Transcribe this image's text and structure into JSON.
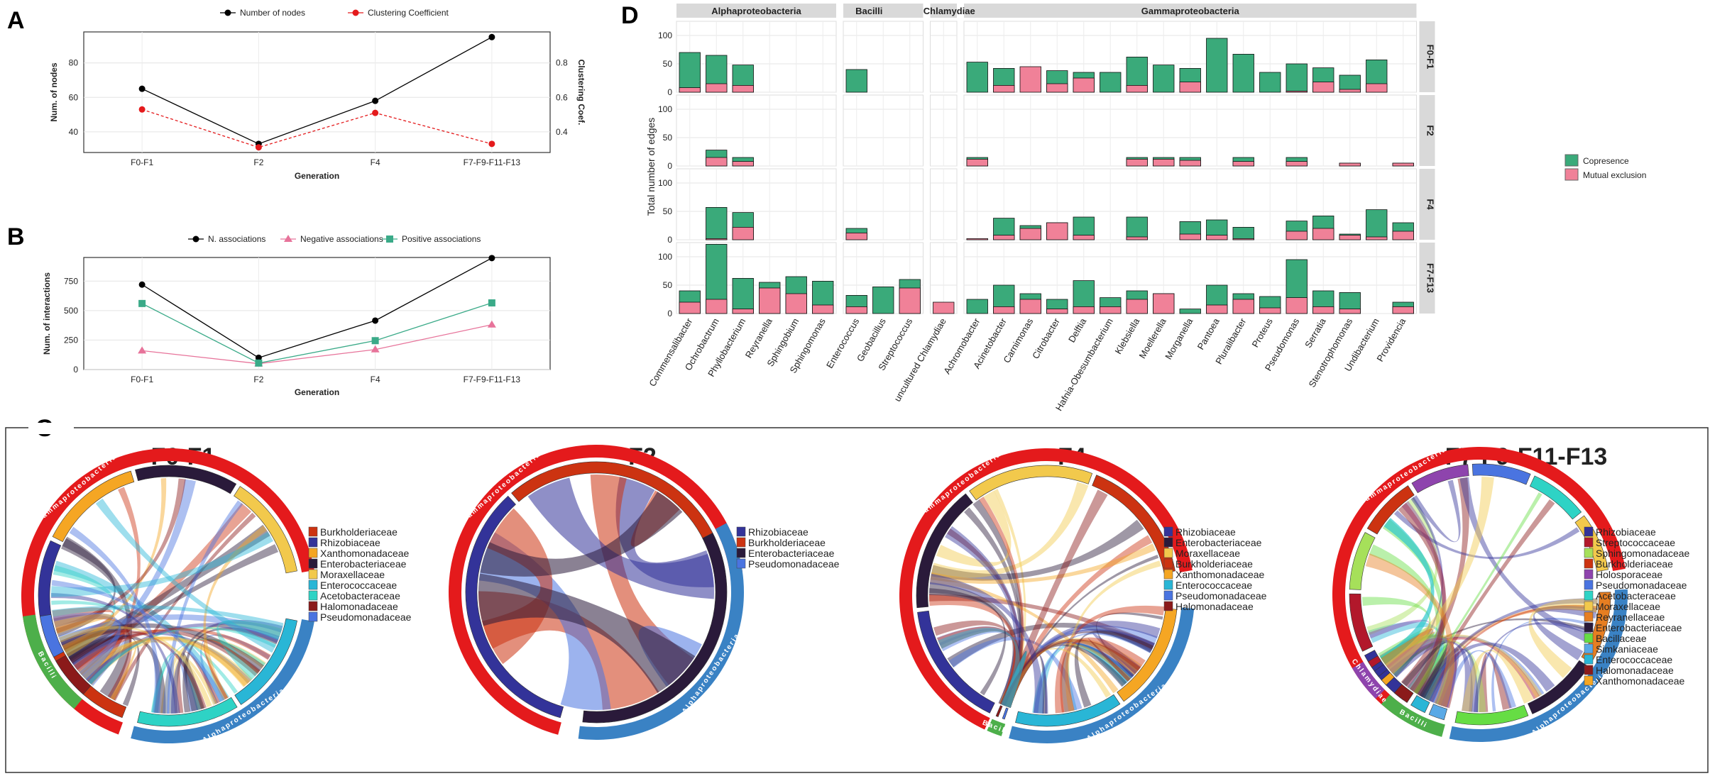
{
  "panel_letters": {
    "a": "A",
    "b": "B",
    "c": "C",
    "d": "D"
  },
  "chart_data": [
    {
      "id": "A",
      "type": "line",
      "categories": [
        "F0-F1",
        "F2",
        "F4",
        "F7-F9-F11-F13"
      ],
      "xlabel": "Generation",
      "ylabel": "Num. of nodes",
      "y2label": "Clustering Coef.",
      "ylim": [
        28,
        98
      ],
      "yticks": [
        40,
        60,
        80
      ],
      "y2lim": [
        0.28,
        0.98
      ],
      "y2ticks": [
        "0.4",
        "0.6",
        "0.8"
      ],
      "series": [
        {
          "name": "Number of nodes",
          "axis": "left",
          "color": "#000000",
          "values": [
            65,
            33,
            58,
            95
          ]
        },
        {
          "name": "Clustering Coefficient",
          "axis": "right",
          "color": "#e41a1c",
          "values": [
            0.53,
            0.31,
            0.51,
            0.33
          ]
        }
      ]
    },
    {
      "id": "B",
      "type": "line",
      "categories": [
        "F0-F1",
        "F2",
        "F4",
        "F7-F9-F11-F13"
      ],
      "xlabel": "Generation",
      "ylabel": "Num. of interactions",
      "ylim": [
        0,
        950
      ],
      "yticks": [
        0,
        250,
        500,
        750
      ],
      "series": [
        {
          "name": "N. associations",
          "color": "#000000",
          "marker": "circle",
          "values": [
            720,
            100,
            415,
            945
          ]
        },
        {
          "name": "Negative associations",
          "color": "#e7739a",
          "marker": "triangle",
          "values": [
            160,
            50,
            170,
            380
          ]
        },
        {
          "name": "Positive associations",
          "color": "#3aaa88",
          "marker": "square",
          "values": [
            560,
            55,
            245,
            565
          ]
        }
      ]
    },
    {
      "id": "D",
      "type": "bar",
      "ylabel": "Total number of edges",
      "ylim": [
        0,
        120
      ],
      "yticks": [
        0,
        50,
        100
      ],
      "legend": [
        {
          "name": "Copresence",
          "color": "#3aaa7a"
        },
        {
          "name": "Mutual exclusion",
          "color": "#f08198"
        }
      ],
      "facet_cols": [
        {
          "label": "Alphaproteobacteria",
          "genera": [
            "Commensalibacter",
            "Ochrobactrum",
            "Phyllobacterium",
            "Reyranella",
            "Sphingobium",
            "Sphingomonas"
          ]
        },
        {
          "label": "Bacilli",
          "genera": [
            "Enterococcus",
            "Geobacillus",
            "Streptococcus"
          ]
        },
        {
          "label": "Chlamydiae",
          "genera": [
            "uncultured Chlamydiae"
          ]
        },
        {
          "label": "Gammaproteobacteria",
          "genera": [
            "Achromobacter",
            "Acinetobacter",
            "Carnimonas",
            "Citrobacter",
            "Delftia",
            "Hafnia-Obesumbacterium",
            "Klebsiella",
            "Moellerella",
            "Morganella",
            "Pantoea",
            "Pluralibacter",
            "Proteus",
            "Pseudomonas",
            "Serratia",
            "Stenotrophomonas",
            "Undibacterium",
            "Providencia"
          ]
        }
      ],
      "facet_rows": [
        {
          "label": "F0-F1",
          "copresence": [
            70,
            65,
            48,
            0,
            0,
            0,
            40,
            0,
            0,
            0,
            53,
            42,
            0,
            38,
            35,
            35,
            62,
            48,
            42,
            95,
            67,
            35,
            50,
            43,
            30,
            57,
            0
          ],
          "mutual_exclusion": [
            8,
            15,
            12,
            0,
            0,
            0,
            0,
            0,
            0,
            0,
            0,
            12,
            45,
            15,
            25,
            0,
            12,
            0,
            18,
            0,
            0,
            0,
            2,
            18,
            5,
            15,
            0
          ]
        },
        {
          "label": "F2",
          "copresence": [
            0,
            28,
            15,
            0,
            0,
            0,
            0,
            0,
            0,
            0,
            15,
            0,
            0,
            0,
            0,
            0,
            15,
            15,
            15,
            0,
            15,
            0,
            15,
            0,
            5,
            0,
            5
          ],
          "mutual_exclusion": [
            0,
            15,
            8,
            0,
            0,
            0,
            0,
            0,
            0,
            0,
            12,
            0,
            0,
            0,
            0,
            0,
            12,
            12,
            10,
            0,
            8,
            0,
            8,
            0,
            5,
            0,
            5
          ]
        },
        {
          "label": "F4",
          "copresence": [
            0,
            57,
            48,
            0,
            0,
            0,
            20,
            0,
            0,
            0,
            2,
            38,
            25,
            30,
            40,
            0,
            40,
            0,
            32,
            35,
            22,
            0,
            33,
            42,
            10,
            53,
            30
          ],
          "mutual_exclusion": [
            0,
            2,
            22,
            0,
            0,
            0,
            12,
            0,
            0,
            0,
            2,
            8,
            20,
            30,
            8,
            0,
            5,
            0,
            10,
            8,
            2,
            0,
            15,
            20,
            8,
            5,
            15
          ]
        },
        {
          "label": "F7-F13",
          "copresence": [
            40,
            122,
            62,
            55,
            65,
            57,
            32,
            47,
            60,
            0,
            25,
            50,
            35,
            25,
            58,
            28,
            40,
            35,
            8,
            50,
            35,
            30,
            95,
            40,
            37,
            0,
            20
          ],
          "mutual_exclusion": [
            20,
            25,
            8,
            45,
            35,
            15,
            12,
            0,
            45,
            20,
            0,
            12,
            25,
            8,
            12,
            12,
            25,
            35,
            0,
            15,
            25,
            10,
            28,
            12,
            8,
            0,
            12
          ]
        }
      ]
    },
    {
      "id": "C",
      "type": "chord",
      "diagrams": [
        {
          "title": "F0-F1",
          "legend": [
            {
              "name": "Burkholderiaceae",
              "color": "#cc3311"
            },
            {
              "name": "Rhizobiaceae",
              "color": "#333399"
            },
            {
              "name": "Xanthomonadaceae",
              "color": "#f5a623"
            },
            {
              "name": "Enterobacteriaceae",
              "color": "#2a1a3a"
            },
            {
              "name": "Moraxellaceae",
              "color": "#f2c94c"
            },
            {
              "name": "Enterococcaceae",
              "color": "#29b6d6"
            },
            {
              "name": "Acetobacteraceae",
              "color": "#2ed3c5"
            },
            {
              "name": "Halomonadaceae",
              "color": "#8b1a1a"
            },
            {
              "name": "Pseudomonadaceae",
              "color": "#4a74e0"
            }
          ],
          "classes": [
            {
              "label": "Gammaproteobacteria",
              "color": "#e41a1c"
            },
            {
              "label": "Alphaproteobacteria",
              "color": "#3a82c4"
            },
            {
              "label": "Bacilli",
              "color": "#4daf4a"
            }
          ]
        },
        {
          "title": "F2",
          "legend": [
            {
              "name": "Rhizobiaceae",
              "color": "#333399"
            },
            {
              "name": "Burkholderiaceae",
              "color": "#cc3311"
            },
            {
              "name": "Enterobacteriaceae",
              "color": "#2a1a3a"
            },
            {
              "name": "Pseudomonadaceae",
              "color": "#4a74e0"
            }
          ],
          "classes": [
            {
              "label": "Gammaproteobacteria",
              "color": "#e41a1c"
            },
            {
              "label": "Alphaproteobacteria",
              "color": "#3a82c4"
            }
          ]
        },
        {
          "title": "F4",
          "legend": [
            {
              "name": "Rhizobiaceae",
              "color": "#333399"
            },
            {
              "name": "Enterobacteriaceae",
              "color": "#2a1a3a"
            },
            {
              "name": "Moraxellaceae",
              "color": "#f2c94c"
            },
            {
              "name": "Burkholderiaceae",
              "color": "#cc3311"
            },
            {
              "name": "Xanthomonadaceae",
              "color": "#f5a623"
            },
            {
              "name": "Enterococcaceae",
              "color": "#29b6d6"
            },
            {
              "name": "Pseudomonadaceae",
              "color": "#4a74e0"
            },
            {
              "name": "Halomonadaceae",
              "color": "#8b1a1a"
            }
          ],
          "classes": [
            {
              "label": "Gammaproteobacteria",
              "color": "#e41a1c"
            },
            {
              "label": "Alphaproteobacteria",
              "color": "#3a82c4"
            },
            {
              "label": "Bacilli",
              "color": "#4daf4a"
            }
          ]
        },
        {
          "title": "F7-F9-F11-F13",
          "legend": [
            {
              "name": "Rhizobiaceae",
              "color": "#333399"
            },
            {
              "name": "Streptococcaceae",
              "color": "#b2182b"
            },
            {
              "name": "Sphingomonadaceae",
              "color": "#a6e05a"
            },
            {
              "name": "Burkholderiaceae",
              "color": "#cc3311"
            },
            {
              "name": "Holosporaceae",
              "color": "#8e44ad"
            },
            {
              "name": "Pseudomonadaceae",
              "color": "#4a74e0"
            },
            {
              "name": "Acetobacteraceae",
              "color": "#2ed3c5"
            },
            {
              "name": "Moraxellaceae",
              "color": "#f2c94c"
            },
            {
              "name": "Reyranellaceae",
              "color": "#e67e22"
            },
            {
              "name": "Enterobacteriaceae",
              "color": "#2a1a3a"
            },
            {
              "name": "Bacillaceae",
              "color": "#66dd44"
            },
            {
              "name": "Simkaniaceae",
              "color": "#5aa9e6"
            },
            {
              "name": "Enterococcaceae",
              "color": "#29b6d6"
            },
            {
              "name": "Halomonadaceae",
              "color": "#8b1a1a"
            },
            {
              "name": "Xanthomonadaceae",
              "color": "#f5a623"
            }
          ],
          "classes": [
            {
              "label": "Gammaproteobacteria",
              "color": "#e41a1c"
            },
            {
              "label": "Alphaproteobacteria",
              "color": "#3a82c4"
            },
            {
              "label": "Bacilli",
              "color": "#4daf4a"
            },
            {
              "label": "Chlamydiae",
              "color": "#8e44ad"
            }
          ]
        }
      ]
    }
  ]
}
